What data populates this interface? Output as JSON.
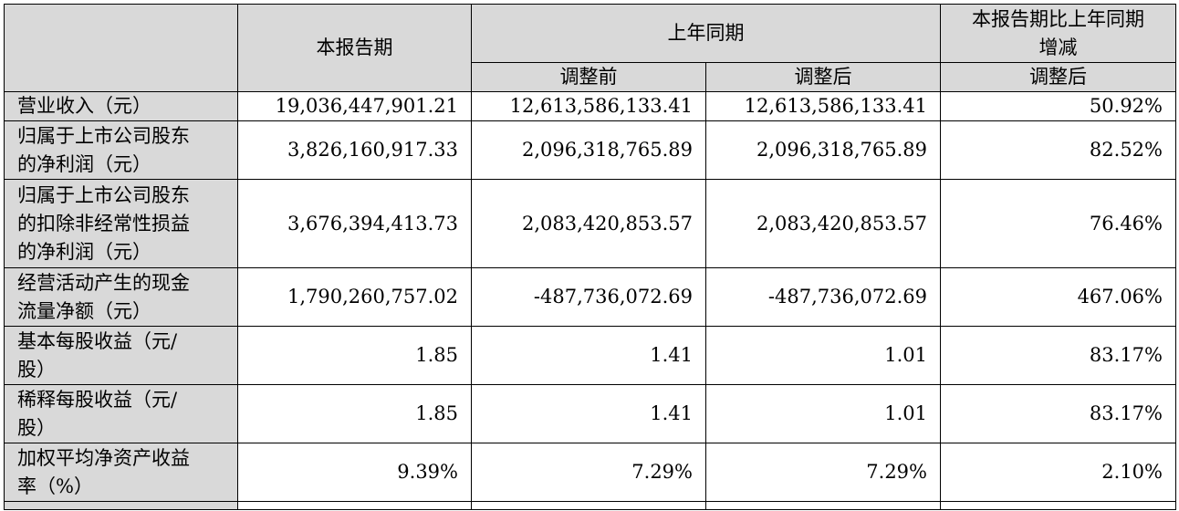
{
  "header": {
    "current_period": "本报告期",
    "prior_year_period": "上年同期",
    "change_line1": "本报告期比上年同期",
    "change_line2": "增减",
    "before_adjustment": "调整前",
    "after_adjustment": "调整后",
    "change_after_adjustment": "调整后"
  },
  "rows": [
    {
      "label_lines": [
        "营业收入（元）"
      ],
      "current": "19,036,447,901.21",
      "before": "12,613,586,133.41",
      "after": "12,613,586,133.41",
      "change": "50.92%"
    },
    {
      "label_lines": [
        "归属于上市公司股东",
        "的净利润（元）"
      ],
      "current": "3,826,160,917.33",
      "before": "2,096,318,765.89",
      "after": "2,096,318,765.89",
      "change": "82.52%"
    },
    {
      "label_lines": [
        "归属于上市公司股东",
        "的扣除非经常性损益",
        "的净利润（元）"
      ],
      "current": "3,676,394,413.73",
      "before": "2,083,420,853.57",
      "after": "2,083,420,853.57",
      "change": "76.46%"
    },
    {
      "label_lines": [
        "经营活动产生的现金",
        "流量净额（元）"
      ],
      "current": "1,790,260,757.02",
      "before": "-487,736,072.69",
      "after": "-487,736,072.69",
      "change": "467.06%"
    },
    {
      "label_lines": [
        "基本每股收益（元/",
        "股）"
      ],
      "current": "1.85",
      "before": "1.41",
      "after": "1.01",
      "change": "83.17%"
    },
    {
      "label_lines": [
        "稀释每股收益（元/",
        "股）"
      ],
      "current": "1.85",
      "before": "1.41",
      "after": "1.01",
      "change": "83.17%"
    },
    {
      "label_lines": [
        "加权平均净资产收益",
        "率（%）"
      ],
      "current": "9.39%",
      "before": "7.29%",
      "after": "7.29%",
      "change": "2.10%"
    }
  ]
}
